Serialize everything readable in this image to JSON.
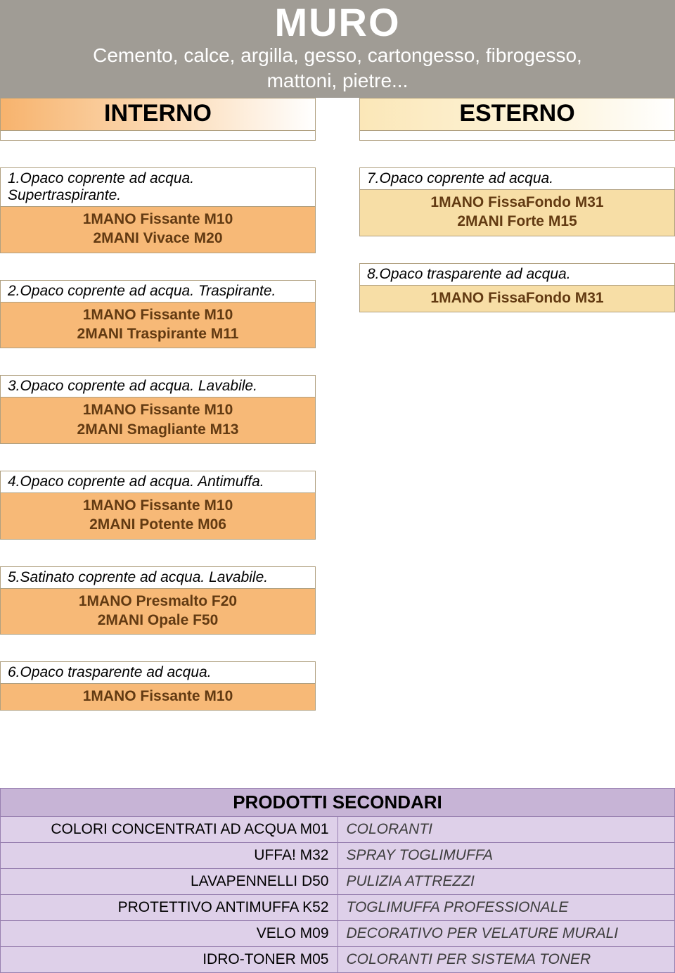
{
  "header": {
    "title": "MURO",
    "subtitle_line1": "Cemento, calce, argilla, gesso, cartongesso, fibrogesso,",
    "subtitle_line2": "mattoni, pietre..."
  },
  "sections": {
    "interno_label": "INTERNO",
    "esterno_label": "ESTERNO"
  },
  "interno": [
    {
      "head": "1.Opaco coprente ad acqua. Supertraspirante.",
      "lines": [
        "1MANO Fissante M10",
        "2MANI Vivace M20"
      ]
    },
    {
      "head": "2.Opaco coprente ad acqua. Traspirante.",
      "lines": [
        "1MANO Fissante M10",
        "2MANI Traspirante M11"
      ]
    },
    {
      "head": "3.Opaco coprente ad acqua. Lavabile.",
      "lines": [
        "1MANO Fissante M10",
        "2MANI Smagliante M13"
      ]
    },
    {
      "head": "4.Opaco coprente ad acqua. Antimuffa.",
      "lines": [
        "1MANO Fissante M10",
        "2MANI Potente M06"
      ]
    },
    {
      "head": "5.Satinato coprente ad acqua. Lavabile.",
      "lines": [
        "1MANO Presmalto F20",
        "2MANI Opale F50"
      ]
    },
    {
      "head": "6.Opaco trasparente ad acqua.",
      "lines": [
        "1MANO Fissante M10"
      ]
    }
  ],
  "esterno": [
    {
      "head": "7.Opaco coprente ad acqua.",
      "lines": [
        "1MANO FissaFondo M31",
        "2MANI Forte M15"
      ]
    },
    {
      "head": "8.Opaco trasparente ad acqua.",
      "lines": [
        "1MANO FissaFondo M31"
      ]
    }
  ],
  "secondary": {
    "title": "PRODOTTI SECONDARI",
    "rows": [
      {
        "left": "COLORI CONCENTRATI AD ACQUA M01",
        "right": "COLORANTI"
      },
      {
        "left": "UFFA! M32",
        "right": "SPRAY TOGLIMUFFA"
      },
      {
        "left": "LAVAPENNELLI D50",
        "right": "PULIZIA ATTREZZI"
      },
      {
        "left": "PROTETTIVO ANTIMUFFA K52",
        "right": "TOGLIMUFFA PROFESSIONALE"
      },
      {
        "left": "VELO M09",
        "right": "DECORATIVO PER VELATURE MURALI"
      },
      {
        "left": "IDRO-TONER M05",
        "right": "COLORANTI PER SISTEMA TONER"
      }
    ]
  },
  "colors": {
    "header_bg": "#a09c95",
    "interno_card_bg": "#f7b977",
    "esterno_card_bg": "#f7dea6",
    "card_text": "#623a12",
    "secondary_title_bg": "#c7b4d6",
    "secondary_row_bg": "#ded0e9",
    "secondary_border": "#9880b0"
  }
}
